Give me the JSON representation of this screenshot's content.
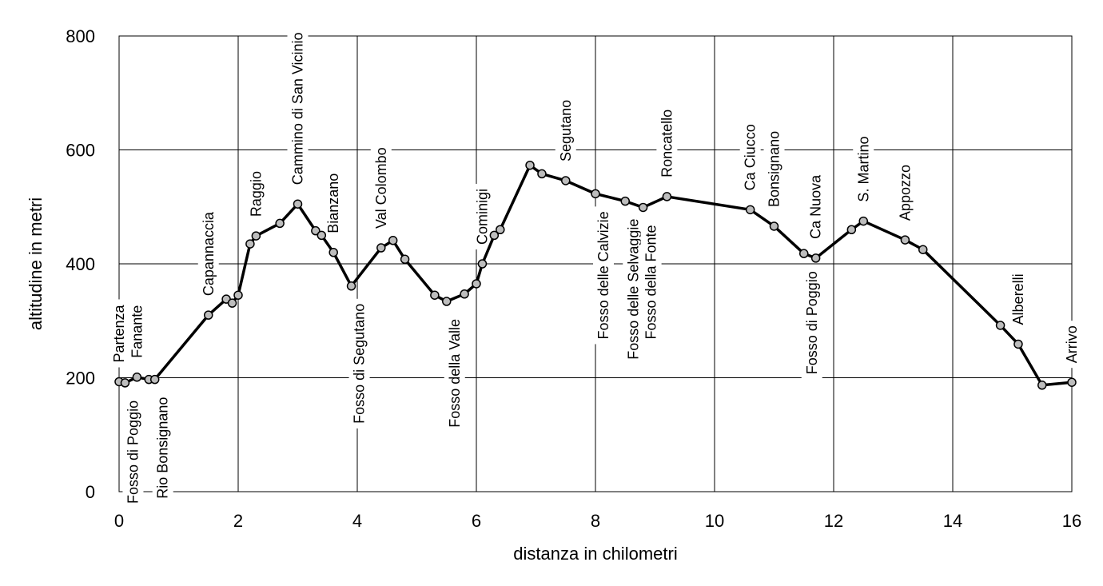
{
  "chart_data": {
    "type": "line",
    "title": "",
    "xlabel": "distanza in chilometri",
    "ylabel": "altitudine  in metri",
    "xlim": [
      0,
      16
    ],
    "ylim": [
      0,
      800
    ],
    "x_ticks": [
      0,
      2,
      4,
      6,
      8,
      10,
      12,
      14,
      16
    ],
    "y_ticks": [
      0,
      200,
      400,
      600,
      800
    ],
    "grid": true,
    "legend": "none",
    "series": [
      {
        "x": [
          0.0,
          0.1,
          0.3,
          0.5,
          0.6,
          1.5,
          1.8,
          1.9,
          2.0,
          2.2,
          2.3,
          2.7,
          3.0,
          3.3,
          3.4,
          3.6,
          3.9,
          4.4,
          4.6,
          4.8,
          5.3,
          5.5,
          5.8,
          6.0,
          6.1,
          6.3,
          6.4,
          6.9,
          7.1,
          7.5,
          8.0,
          8.5,
          8.8,
          9.2,
          10.6,
          11.0,
          11.5,
          11.7,
          12.3,
          12.5,
          13.2,
          13.5,
          14.8,
          15.1,
          15.5,
          16.0
        ],
        "y": [
          193,
          191,
          201,
          197,
          197,
          310,
          338,
          331,
          345,
          435,
          449,
          471,
          505,
          458,
          450,
          420,
          361,
          428,
          441,
          408,
          345,
          334,
          347,
          365,
          400,
          450,
          460,
          573,
          558,
          546,
          523,
          510,
          499,
          518,
          495,
          466,
          418,
          410,
          460,
          475,
          442,
          425,
          292,
          259,
          187,
          192
        ]
      }
    ],
    "annotations": [
      {
        "text": "Partenza",
        "x": 0.0,
        "pos": "above"
      },
      {
        "text": "Fosso di Poggio",
        "x": 0.1,
        "pos": "below"
      },
      {
        "text": "Fanante",
        "x": 0.3,
        "pos": "above"
      },
      {
        "text": "Rio Bonsignano",
        "x": 0.6,
        "pos": "below"
      },
      {
        "text": "Capannaccia",
        "x": 1.5,
        "pos": "above"
      },
      {
        "text": "Raggio",
        "x": 2.3,
        "pos": "above"
      },
      {
        "text": "Cammino di San Vicinio",
        "x": 3.0,
        "pos": "above"
      },
      {
        "text": "Bianzano",
        "x": 3.6,
        "pos": "above"
      },
      {
        "text": "Fosso di Segutano",
        "x": 3.9,
        "pos": "below"
      },
      {
        "text": "Val Colombo",
        "x": 4.4,
        "pos": "above"
      },
      {
        "text": "Fosso della Valle",
        "x": 5.5,
        "pos": "below"
      },
      {
        "text": "Cominigi",
        "x": 6.1,
        "pos": "above"
      },
      {
        "text": "Segutano",
        "x": 7.5,
        "pos": "above"
      },
      {
        "text": "Fosso delle Calvizie",
        "x": 8.0,
        "pos": "below"
      },
      {
        "text": "Fosso delle Selvaggie",
        "x": 8.5,
        "pos": "below"
      },
      {
        "text": "Fosso della Fonte",
        "x": 8.8,
        "pos": "below"
      },
      {
        "text": "Roncatello",
        "x": 9.2,
        "pos": "above"
      },
      {
        "text": "Ca Ciucco",
        "x": 10.6,
        "pos": "above"
      },
      {
        "text": "Bonsignano",
        "x": 11.0,
        "pos": "above"
      },
      {
        "text": "Fosso di Poggio",
        "x": 11.5,
        "pos": "below"
      },
      {
        "text": "Ca Nuova",
        "x": 11.7,
        "pos": "above"
      },
      {
        "text": "S. Martino",
        "x": 12.5,
        "pos": "above"
      },
      {
        "text": "Appozzo",
        "x": 13.2,
        "pos": "above"
      },
      {
        "text": "Alberelli",
        "x": 15.1,
        "pos": "above"
      },
      {
        "text": "Arrivo",
        "x": 16.0,
        "pos": "above"
      }
    ],
    "colors": {
      "line": "#000000",
      "marker_fill": "#bdbdbd",
      "marker_stroke": "#000000",
      "grid": "#000000"
    }
  }
}
